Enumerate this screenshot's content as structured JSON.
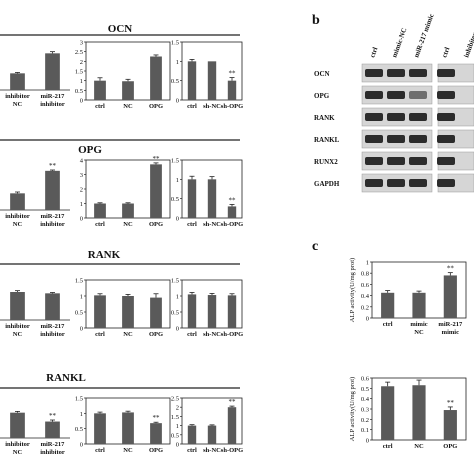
{
  "figure": {
    "panel_b_label": "b",
    "panel_c_label": "c",
    "section_titles": [
      "OCN",
      "OPG",
      "RANK",
      "RANKL"
    ]
  },
  "chart_data": [
    {
      "type": "bar",
      "section": "OCN",
      "categories": [
        "inhibitor NC",
        "miR-217 inhibitor"
      ],
      "values": [
        1.0,
        2.2
      ],
      "errors": [
        0.05,
        0.1
      ],
      "ylim": [
        0,
        3
      ],
      "yticks": [],
      "significance": [
        "",
        ""
      ]
    },
    {
      "type": "bar",
      "section": "OCN",
      "categories": [
        "ctrl",
        "NC",
        "OPG"
      ],
      "values": [
        1.0,
        0.97,
        2.25
      ],
      "errors": [
        0.15,
        0.1,
        0.08
      ],
      "ylim": [
        0,
        3
      ],
      "yticks": [
        "0",
        "0.5",
        "1",
        "1.5",
        "2",
        "2.5",
        "3"
      ],
      "significance": [
        "",
        "",
        ""
      ]
    },
    {
      "type": "bar",
      "section": "OCN",
      "categories": [
        "ctrl",
        "sh-NC",
        "sh-OPG"
      ],
      "values": [
        1.0,
        1.0,
        0.5
      ],
      "errors": [
        0.05,
        0.0,
        0.08
      ],
      "ylim": [
        0,
        1.5
      ],
      "yticks": [
        "0",
        "0.5",
        "1",
        "1.5"
      ],
      "significance": [
        "",
        "",
        "**"
      ]
    },
    {
      "type": "bar",
      "section": "OPG",
      "categories": [
        "inhibitor NC",
        "miR-217 inhibitor"
      ],
      "values": [
        1.0,
        2.35
      ],
      "errors": [
        0.08,
        0.05
      ],
      "ylim": [
        0,
        3
      ],
      "yticks": [],
      "significance": [
        "",
        "**"
      ]
    },
    {
      "type": "bar",
      "section": "OPG",
      "categories": [
        "ctrl",
        "NC",
        "OPG"
      ],
      "values": [
        1.0,
        1.0,
        3.7
      ],
      "errors": [
        0.05,
        0.05,
        0.1
      ],
      "ylim": [
        0,
        4
      ],
      "yticks": [
        "0",
        "1",
        "2",
        "3",
        "4"
      ],
      "significance": [
        "",
        "",
        "**"
      ]
    },
    {
      "type": "bar",
      "section": "OPG",
      "categories": [
        "ctrl",
        "sh-NC",
        "sh-OPG"
      ],
      "values": [
        1.0,
        1.0,
        0.3
      ],
      "errors": [
        0.08,
        0.07,
        0.05
      ],
      "ylim": [
        0,
        1.5
      ],
      "yticks": [
        "0",
        "0.5",
        "1",
        "1.5"
      ],
      "significance": [
        "",
        "",
        "**"
      ]
    },
    {
      "type": "bar",
      "section": "RANK",
      "categories": [
        "inhibitor NC",
        "miR-217 inhibitor"
      ],
      "values": [
        1.05,
        1.0
      ],
      "errors": [
        0.05,
        0.03
      ],
      "ylim": [
        0,
        1.5
      ],
      "yticks": [],
      "significance": [
        "",
        ""
      ]
    },
    {
      "type": "bar",
      "section": "RANK",
      "categories": [
        "ctrl",
        "NC",
        "OPG"
      ],
      "values": [
        1.02,
        1.0,
        0.95
      ],
      "errors": [
        0.05,
        0.05,
        0.12
      ],
      "ylim": [
        0,
        1.5
      ],
      "yticks": [
        "0",
        "0.5",
        "1",
        "1.5"
      ],
      "significance": [
        "",
        "",
        ""
      ]
    },
    {
      "type": "bar",
      "section": "RANK",
      "categories": [
        "ctrl",
        "sh-NC",
        "sh-OPG"
      ],
      "values": [
        1.05,
        1.03,
        1.02
      ],
      "errors": [
        0.06,
        0.05,
        0.05
      ],
      "ylim": [
        0,
        1.5
      ],
      "yticks": [
        "0",
        "0.5",
        "1",
        "1.5"
      ],
      "significance": [
        "",
        "",
        ""
      ]
    },
    {
      "type": "bar",
      "section": "RANKL",
      "categories": [
        "inhibitor NC",
        "miR-217 inhibitor"
      ],
      "values": [
        1.0,
        0.65
      ],
      "errors": [
        0.05,
        0.06
      ],
      "ylim": [
        0,
        1.5
      ],
      "yticks": [],
      "significance": [
        "",
        "**"
      ]
    },
    {
      "type": "bar",
      "section": "RANKL",
      "categories": [
        "ctrl",
        "NC",
        "OPG"
      ],
      "values": [
        1.0,
        1.03,
        0.68
      ],
      "errors": [
        0.04,
        0.04,
        0.03
      ],
      "ylim": [
        0,
        1.5
      ],
      "yticks": [
        "0",
        "0.5",
        "1",
        "1.5"
      ],
      "significance": [
        "",
        "",
        "**"
      ]
    },
    {
      "type": "bar",
      "section": "RANKL",
      "categories": [
        "ctrl",
        "sh-NC",
        "sh-OPG"
      ],
      "values": [
        1.0,
        1.0,
        2.0
      ],
      "errors": [
        0.05,
        0.04,
        0.06
      ],
      "ylim": [
        0,
        2.5
      ],
      "yticks": [
        "0",
        "0.5",
        "1",
        "1.5",
        "2",
        "2.5"
      ],
      "significance": [
        "",
        "",
        "**"
      ]
    },
    {
      "type": "bar",
      "section": "ALP-c-top",
      "categories": [
        "ctrl",
        "mimic NC",
        "miR-217 mimic"
      ],
      "values": [
        0.45,
        0.45,
        0.76
      ],
      "errors": [
        0.04,
        0.03,
        0.05
      ],
      "ylim": [
        0,
        1
      ],
      "yticks": [
        "0",
        "0.2",
        "0.4",
        "0.6",
        "0.8",
        "1"
      ],
      "ylabel": "ALP activity(U/mg prot)",
      "significance": [
        "",
        "",
        "**"
      ]
    },
    {
      "type": "bar",
      "section": "ALP-c-bottom",
      "categories": [
        "ctrl",
        "NC",
        "OPG"
      ],
      "values": [
        0.52,
        0.53,
        0.29
      ],
      "errors": [
        0.04,
        0.05,
        0.03
      ],
      "ylim": [
        0,
        0.6
      ],
      "yticks": [
        "0",
        "0.1",
        "0.2",
        "0.3",
        "0.4",
        "0.5",
        "0.6"
      ],
      "ylabel": "ALP activity(U/mg prot)",
      "significance": [
        "",
        "",
        "**"
      ]
    }
  ],
  "western_blot": {
    "lanes": [
      "ctrl",
      "mimic-NC",
      "miR-217 mimic",
      "ctrl",
      "inhibitor"
    ],
    "bands": [
      "OCN",
      "OPG",
      "RANK",
      "RANKL",
      "RUNX2",
      "GAPDH"
    ]
  }
}
